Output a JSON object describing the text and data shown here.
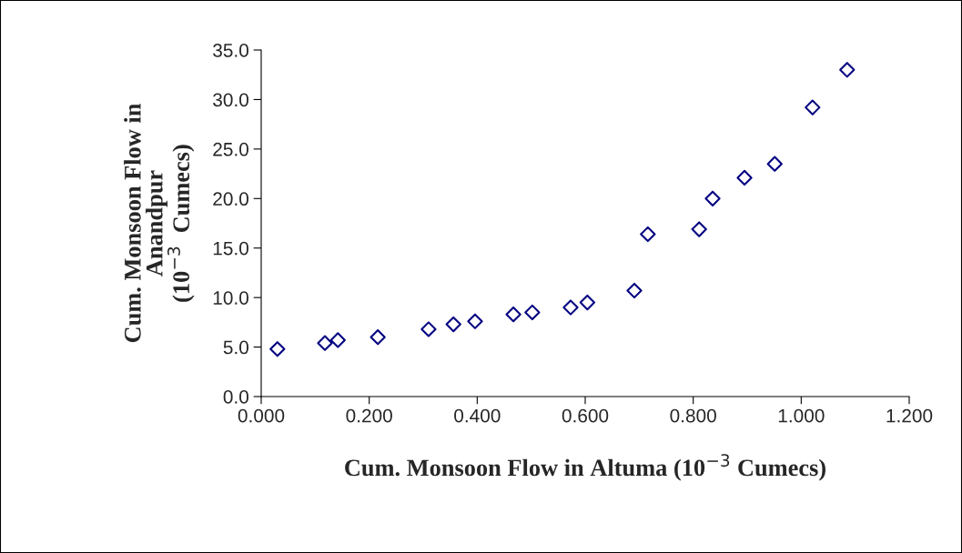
{
  "chart_data": {
    "type": "scatter",
    "xlabel": "Cum. Monsoon Flow in Altuma (10$^{−3}$ Cumecs)",
    "ylabel": "Cum. Monsoon Flow in\nAnandpur\n(10$^{−3}$  Cumecs)",
    "x": [
      0.03,
      0.118,
      0.142,
      0.216,
      0.31,
      0.356,
      0.396,
      0.467,
      0.502,
      0.573,
      0.604,
      0.691,
      0.716,
      0.811,
      0.836,
      0.895,
      0.951,
      1.021,
      1.085
    ],
    "series": [
      {
        "color": "#000080",
        "values": [
          4.8,
          5.4,
          5.7,
          6.0,
          6.8,
          7.3,
          7.6,
          8.3,
          8.5,
          9.0,
          9.5,
          10.7,
          16.4,
          16.9,
          20.0,
          22.1,
          23.5,
          29.2,
          33.0
        ]
      }
    ],
    "marker": "diamond",
    "grid": false,
    "legend": false,
    "xlim": [
      0,
      1.2
    ],
    "xticks": [
      {
        "value": 0,
        "label": "0.000"
      },
      {
        "value": 0.2,
        "label": "0.200"
      },
      {
        "value": 0.4,
        "label": "0.400"
      },
      {
        "value": 0.6,
        "label": "0.600"
      },
      {
        "value": 0.8,
        "label": "0.800"
      },
      {
        "value": 1.0,
        "label": "1.000"
      },
      {
        "value": 1.2,
        "label": "1.200"
      }
    ],
    "ylim": [
      0,
      35
    ],
    "yticks": [
      {
        "value": 0,
        "label": "0.0"
      },
      {
        "value": 5,
        "label": "5.0"
      },
      {
        "value": 10,
        "label": "10.0"
      },
      {
        "value": 15,
        "label": "15.0"
      },
      {
        "value": 20,
        "label": "20.0"
      },
      {
        "value": 25,
        "label": "25.0"
      },
      {
        "value": 30,
        "label": "30.0"
      },
      {
        "value": 35,
        "label": "35.0"
      }
    ]
  }
}
